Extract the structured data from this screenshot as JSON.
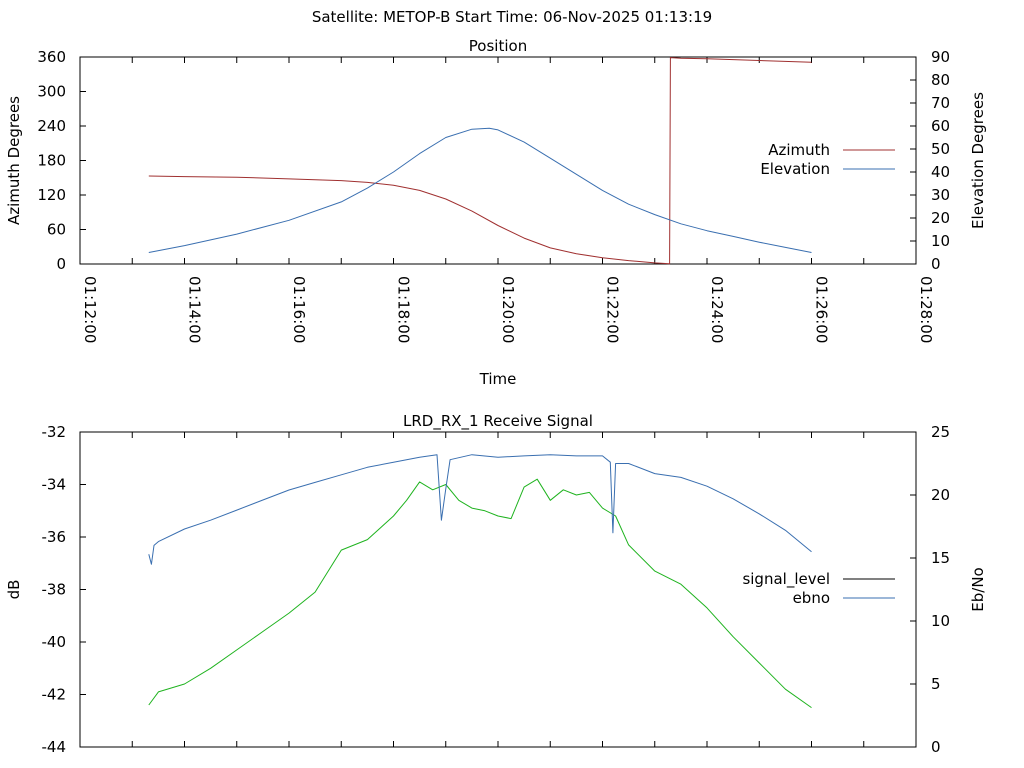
{
  "header": {
    "title": "Satellite: METOP-B    Start Time: 06-Nov-2025 01:13:19"
  },
  "colors": {
    "azimuth": "#a03030",
    "elevation": "#3a6fb0",
    "signal_level": "#000000",
    "signal_plotted": "#1fb31f",
    "ebno": "#3a6fb0",
    "axis": "#000000"
  },
  "chart_data": [
    {
      "type": "line",
      "title": "Position",
      "xlabel": "Time",
      "ylabel": "Azimuth Degrees",
      "y2label": "Elevation Degrees",
      "xlim": [
        "01:12:00",
        "01:28:00"
      ],
      "ylim": [
        0,
        360
      ],
      "y2lim": [
        0,
        90
      ],
      "x_ticks": [
        "01:12:00",
        "01:14:00",
        "01:16:00",
        "01:18:00",
        "01:20:00",
        "01:22:00",
        "01:24:00",
        "01:26:00",
        "01:28:00"
      ],
      "y_ticks": [
        0,
        60,
        120,
        180,
        240,
        300,
        360
      ],
      "y2_ticks": [
        0,
        10,
        20,
        30,
        40,
        50,
        60,
        70,
        80,
        90
      ],
      "legend_position": "right",
      "series": [
        {
          "name": "Azimuth",
          "axis": "y",
          "x": [
            "01:13:19",
            "01:14:00",
            "01:15:00",
            "01:16:00",
            "01:17:00",
            "01:17:30",
            "01:18:00",
            "01:18:30",
            "01:19:00",
            "01:19:30",
            "01:20:00",
            "01:20:30",
            "01:21:00",
            "01:21:30",
            "01:22:00",
            "01:22:30",
            "01:23:00",
            "01:23:17",
            "01:23:18",
            "01:23:30",
            "01:24:00",
            "01:25:00",
            "01:26:00"
          ],
          "values": [
            153,
            152,
            151,
            148,
            145,
            142,
            137,
            128,
            113,
            92,
            67,
            45,
            28,
            18,
            11,
            6,
            2,
            0.5,
            359,
            358,
            357,
            354,
            351
          ]
        },
        {
          "name": "Elevation",
          "axis": "y2",
          "x": [
            "01:13:19",
            "01:14:00",
            "01:15:00",
            "01:16:00",
            "01:17:00",
            "01:17:30",
            "01:18:00",
            "01:18:30",
            "01:19:00",
            "01:19:30",
            "01:19:50",
            "01:20:00",
            "01:20:30",
            "01:21:00",
            "01:21:30",
            "01:22:00",
            "01:22:30",
            "01:23:00",
            "01:23:30",
            "01:24:00",
            "01:24:30",
            "01:25:00",
            "01:25:30",
            "01:26:00"
          ],
          "values": [
            5,
            8,
            13,
            19,
            27,
            33,
            40,
            48,
            55,
            58.6,
            59,
            58.3,
            53,
            46,
            39,
            32,
            26,
            21.5,
            17.5,
            14.5,
            12,
            9.5,
            7.2,
            5
          ]
        }
      ]
    },
    {
      "type": "line",
      "title": "LRD_RX_1 Receive Signal",
      "xlabel": "",
      "ylabel": "dB",
      "y2label": "Eb/No",
      "xlim": [
        "01:12:00",
        "01:28:00"
      ],
      "ylim": [
        -44,
        -32
      ],
      "y2lim": [
        0,
        25
      ],
      "y_ticks": [
        -44,
        -42,
        -40,
        -38,
        -36,
        -34,
        -32
      ],
      "y2_ticks": [
        0,
        5,
        10,
        15,
        20,
        25
      ],
      "legend_position": "right",
      "series": [
        {
          "name": "signal_level",
          "axis": "y",
          "x": [
            "01:13:19",
            "01:13:30",
            "01:14:00",
            "01:14:30",
            "01:15:00",
            "01:15:30",
            "01:16:00",
            "01:16:30",
            "01:17:00",
            "01:17:30",
            "01:18:00",
            "01:18:15",
            "01:18:30",
            "01:18:45",
            "01:19:00",
            "01:19:15",
            "01:19:30",
            "01:19:45",
            "01:20:00",
            "01:20:15",
            "01:20:30",
            "01:20:45",
            "01:21:00",
            "01:21:15",
            "01:21:30",
            "01:21:45",
            "01:22:00",
            "01:22:15",
            "01:22:30",
            "01:23:00",
            "01:23:30",
            "01:24:00",
            "01:24:30",
            "01:25:00",
            "01:25:30",
            "01:26:00"
          ],
          "values": [
            -42.4,
            -41.9,
            -41.6,
            -41.0,
            -40.3,
            -39.6,
            -38.9,
            -38.1,
            -36.5,
            -36.1,
            -35.2,
            -34.6,
            -33.9,
            -34.2,
            -34.0,
            -34.6,
            -34.9,
            -35.0,
            -35.2,
            -35.3,
            -34.1,
            -33.8,
            -34.6,
            -34.2,
            -34.4,
            -34.3,
            -34.9,
            -35.2,
            -36.3,
            -37.3,
            -37.8,
            -38.7,
            -39.8,
            -40.8,
            -41.8,
            -42.5
          ]
        },
        {
          "name": "ebno",
          "axis": "y2",
          "x": [
            "01:13:19",
            "01:13:22",
            "01:13:25",
            "01:13:30",
            "01:14:00",
            "01:14:30",
            "01:15:00",
            "01:15:30",
            "01:16:00",
            "01:16:30",
            "01:17:00",
            "01:17:30",
            "01:18:00",
            "01:18:30",
            "01:18:50",
            "01:18:55",
            "01:19:00",
            "01:19:05",
            "01:19:30",
            "01:20:00",
            "01:20:30",
            "01:21:00",
            "01:21:30",
            "01:22:00",
            "01:22:09",
            "01:22:12",
            "01:22:15",
            "01:22:30",
            "01:23:00",
            "01:23:30",
            "01:24:00",
            "01:24:30",
            "01:25:00",
            "01:25:30",
            "01:26:00"
          ],
          "values": [
            15.3,
            14.5,
            16.0,
            16.3,
            17.3,
            18.0,
            18.8,
            19.6,
            20.4,
            21.0,
            21.6,
            22.2,
            22.6,
            23.0,
            23.2,
            18.0,
            20.5,
            22.8,
            23.2,
            23.0,
            23.1,
            23.2,
            23.1,
            23.1,
            22.6,
            17.0,
            22.5,
            22.5,
            21.7,
            21.4,
            20.7,
            19.7,
            18.5,
            17.2,
            15.5
          ]
        }
      ]
    }
  ]
}
